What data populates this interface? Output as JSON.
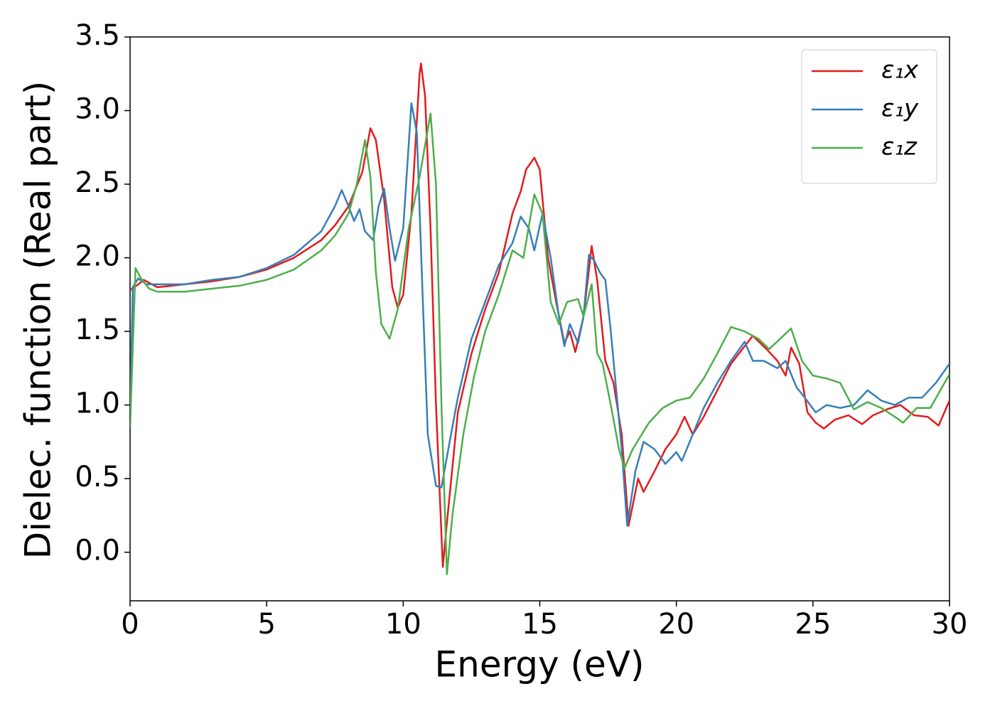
{
  "chart_data": {
    "type": "line",
    "xlabel": "Energy (eV)",
    "ylabel": "Dielec. function (Real part)",
    "xlim": [
      0,
      30
    ],
    "ylim": [
      -0.33,
      3.5
    ],
    "xticks": [
      0,
      5,
      10,
      15,
      20,
      25,
      30
    ],
    "yticks": [
      {
        "value": 0,
        "label": "0.0"
      },
      0.5,
      {
        "value": 1,
        "label": "1.0"
      },
      1.5,
      {
        "value": 2,
        "label": "2.0"
      },
      2.5,
      {
        "value": 3,
        "label": "3.0"
      },
      3.5
    ],
    "legend": "upper right",
    "grid": false,
    "series": [
      {
        "name": "ε₁x",
        "color": "#e41a1c",
        "x": [
          0,
          0.3,
          0.5,
          1,
          2,
          3,
          4,
          5,
          6,
          7,
          7.5,
          8,
          8.5,
          8.8,
          9.0,
          9.3,
          9.6,
          9.8,
          10.0,
          10.3,
          10.6,
          10.65,
          10.8,
          11.0,
          11.2,
          11.45,
          11.6,
          12,
          12.5,
          13,
          13.5,
          14,
          14.3,
          14.5,
          14.8,
          15.0,
          15.3,
          15.6,
          15.9,
          16.1,
          16.3,
          16.6,
          16.9,
          17.1,
          17.4,
          17.7,
          18.0,
          18.25,
          18.6,
          18.8,
          19.2,
          19.6,
          20.0,
          20.3,
          20.6,
          21,
          21.5,
          22,
          22.5,
          22.8,
          23.3,
          23.7,
          24.0,
          24.2,
          24.5,
          24.8,
          25.1,
          25.4,
          25.8,
          26.3,
          26.8,
          27.2,
          27.7,
          28.2,
          28.7,
          29.2,
          29.6,
          30
        ],
        "values": [
          1.78,
          1.82,
          1.85,
          1.8,
          1.82,
          1.84,
          1.87,
          1.92,
          2.0,
          2.12,
          2.22,
          2.35,
          2.58,
          2.88,
          2.8,
          2.4,
          1.8,
          1.66,
          1.75,
          2.3,
          3.25,
          3.32,
          3.1,
          2.2,
          1.0,
          -0.1,
          0.2,
          0.95,
          1.35,
          1.65,
          1.9,
          2.3,
          2.45,
          2.6,
          2.68,
          2.6,
          2.0,
          1.7,
          1.42,
          1.5,
          1.36,
          1.6,
          2.08,
          1.85,
          1.3,
          1.15,
          0.8,
          0.18,
          0.5,
          0.41,
          0.55,
          0.7,
          0.8,
          0.92,
          0.8,
          0.92,
          1.1,
          1.28,
          1.4,
          1.47,
          1.38,
          1.3,
          1.2,
          1.39,
          1.28,
          0.95,
          0.88,
          0.84,
          0.9,
          0.93,
          0.87,
          0.93,
          0.97,
          1.0,
          0.93,
          0.92,
          0.86,
          1.03
        ]
      },
      {
        "name": "ε₁y",
        "color": "#377eb8",
        "x": [
          0,
          0.1,
          0.3,
          0.6,
          1,
          2,
          3,
          4,
          5,
          6,
          7,
          7.5,
          7.75,
          8.0,
          8.2,
          8.4,
          8.6,
          8.9,
          9.1,
          9.3,
          9.5,
          9.7,
          10.0,
          10.3,
          10.5,
          10.7,
          10.9,
          11.2,
          11.4,
          11.7,
          12,
          12.5,
          13,
          13.5,
          14.0,
          14.3,
          14.6,
          14.8,
          15.1,
          15.4,
          15.7,
          15.9,
          16.1,
          16.4,
          16.6,
          16.8,
          17.0,
          17.2,
          17.4,
          17.6,
          17.8,
          18.0,
          18.2,
          18.5,
          18.8,
          19.2,
          19.6,
          20.0,
          20.2,
          20.6,
          21,
          21.5,
          22,
          22.5,
          22.8,
          23.2,
          23.7,
          24.0,
          24.4,
          24.7,
          25.1,
          25.5,
          26,
          26.5,
          27,
          27.5,
          28,
          28.5,
          29,
          29.5,
          30
        ],
        "values": [
          0.85,
          1.8,
          1.86,
          1.82,
          1.82,
          1.82,
          1.85,
          1.87,
          1.93,
          2.02,
          2.18,
          2.35,
          2.46,
          2.35,
          2.25,
          2.33,
          2.18,
          2.12,
          2.35,
          2.47,
          2.2,
          1.98,
          2.2,
          3.05,
          2.85,
          1.8,
          0.8,
          0.45,
          0.44,
          0.75,
          1.05,
          1.45,
          1.7,
          1.95,
          2.1,
          2.28,
          2.2,
          2.05,
          2.3,
          2.0,
          1.6,
          1.4,
          1.55,
          1.42,
          1.6,
          2.02,
          1.98,
          1.9,
          1.85,
          1.5,
          1.1,
          0.7,
          0.18,
          0.55,
          0.75,
          0.7,
          0.6,
          0.68,
          0.62,
          0.8,
          0.98,
          1.15,
          1.3,
          1.43,
          1.3,
          1.3,
          1.25,
          1.3,
          1.12,
          1.05,
          0.95,
          1.0,
          0.98,
          1.0,
          1.1,
          1.03,
          1.0,
          1.05,
          1.05,
          1.15,
          1.28
        ]
      },
      {
        "name": "ε₁z",
        "color": "#4daf4a",
        "x": [
          0,
          0.2,
          0.4,
          0.7,
          1,
          2,
          3,
          4,
          5,
          6,
          7,
          7.5,
          8,
          8.3,
          8.6,
          8.8,
          9.0,
          9.2,
          9.5,
          9.8,
          10.2,
          10.6,
          11.0,
          11.2,
          11.4,
          11.6,
          11.8,
          12.2,
          12.6,
          13,
          13.5,
          14.0,
          14.4,
          14.8,
          15.1,
          15.4,
          15.7,
          16.0,
          16.4,
          16.6,
          16.9,
          17.1,
          17.3,
          17.6,
          17.9,
          18.1,
          18.4,
          18.7,
          19.0,
          19.5,
          20,
          20.5,
          21,
          21.5,
          22,
          22.5,
          23,
          23.4,
          23.8,
          24.2,
          24.6,
          25,
          25.5,
          26,
          26.5,
          27,
          27.5,
          28,
          28.3,
          28.8,
          29.3,
          30
        ],
        "values": [
          0.85,
          1.93,
          1.86,
          1.79,
          1.77,
          1.77,
          1.79,
          1.81,
          1.85,
          1.92,
          2.05,
          2.15,
          2.3,
          2.5,
          2.8,
          2.55,
          1.9,
          1.55,
          1.45,
          1.65,
          2.2,
          2.55,
          2.98,
          2.5,
          1.0,
          -0.15,
          0.25,
          0.8,
          1.2,
          1.5,
          1.75,
          2.05,
          2.0,
          2.43,
          2.3,
          1.7,
          1.55,
          1.7,
          1.72,
          1.6,
          1.82,
          1.35,
          1.28,
          1.0,
          0.7,
          0.57,
          0.7,
          0.79,
          0.88,
          0.98,
          1.03,
          1.05,
          1.18,
          1.35,
          1.53,
          1.5,
          1.45,
          1.38,
          1.45,
          1.52,
          1.3,
          1.2,
          1.18,
          1.15,
          0.97,
          1.02,
          0.98,
          0.92,
          0.88,
          0.98,
          0.98,
          1.21
        ]
      }
    ]
  }
}
